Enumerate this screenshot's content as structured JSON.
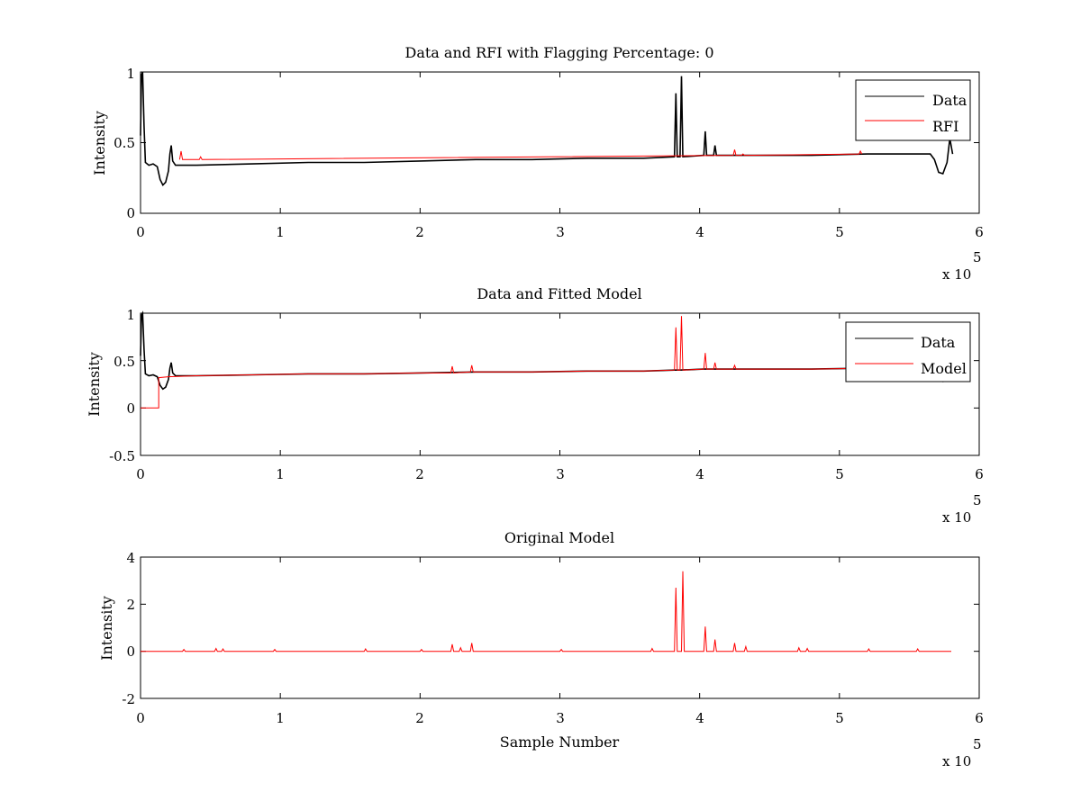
{
  "chart_data": [
    {
      "type": "line",
      "title": "Data and RFI with Flagging Percentage: 0",
      "xlabel": "",
      "ylabel": "Intensity",
      "xlim": [
        0,
        600000
      ],
      "ylim": [
        0,
        1
      ],
      "x_ticks": [
        "0",
        "1",
        "2",
        "3",
        "4",
        "5",
        "6"
      ],
      "y_ticks": [
        "0",
        "0.5",
        "1"
      ],
      "x_multiplier": "x 10",
      "x_multiplier_exp": "5",
      "legend_position": "top-right",
      "grid": false,
      "series": [
        {
          "name": "Data",
          "color": "#000000",
          "points": [
            [
              0,
              0.55
            ],
            [
              700,
              0.98
            ],
            [
              1500,
              1.0
            ],
            [
              2500,
              0.62
            ],
            [
              3500,
              0.36
            ],
            [
              6000,
              0.34
            ],
            [
              9000,
              0.35
            ],
            [
              12000,
              0.33
            ],
            [
              14000,
              0.24
            ],
            [
              16000,
              0.2
            ],
            [
              18000,
              0.22
            ],
            [
              20000,
              0.3
            ],
            [
              21000,
              0.42
            ],
            [
              22000,
              0.48
            ],
            [
              23000,
              0.37
            ],
            [
              25000,
              0.34
            ],
            [
              40000,
              0.34
            ],
            [
              80000,
              0.35
            ],
            [
              120000,
              0.36
            ],
            [
              160000,
              0.36
            ],
            [
              200000,
              0.37
            ],
            [
              240000,
              0.38
            ],
            [
              280000,
              0.38
            ],
            [
              320000,
              0.39
            ],
            [
              360000,
              0.39
            ],
            [
              382000,
              0.4
            ],
            [
              383000,
              0.85
            ],
            [
              384000,
              0.4
            ],
            [
              386000,
              0.4
            ],
            [
              387000,
              0.97
            ],
            [
              388000,
              0.4
            ],
            [
              403000,
              0.41
            ],
            [
              404000,
              0.58
            ],
            [
              405000,
              0.41
            ],
            [
              410000,
              0.41
            ],
            [
              411000,
              0.48
            ],
            [
              412000,
              0.41
            ],
            [
              440000,
              0.41
            ],
            [
              480000,
              0.41
            ],
            [
              520000,
              0.42
            ],
            [
              560000,
              0.42
            ],
            [
              565000,
              0.42
            ],
            [
              568000,
              0.38
            ],
            [
              571000,
              0.29
            ],
            [
              574000,
              0.28
            ],
            [
              577000,
              0.36
            ],
            [
              579000,
              0.53
            ],
            [
              581000,
              0.42
            ]
          ]
        },
        {
          "name": "RFI",
          "color": "#ff0000",
          "points": [
            [
              28000,
              0.38
            ],
            [
              29000,
              0.44
            ],
            [
              30000,
              0.38
            ],
            [
              42000,
              0.38
            ],
            [
              43000,
              0.4
            ],
            [
              44000,
              0.38
            ],
            [
              424000,
              0.41
            ],
            [
              425000,
              0.45
            ],
            [
              426000,
              0.41
            ],
            [
              430000,
              0.41
            ],
            [
              431000,
              0.42
            ],
            [
              432000,
              0.41
            ],
            [
              514000,
              0.42
            ],
            [
              515000,
              0.44
            ],
            [
              516000,
              0.42
            ]
          ]
        }
      ]
    },
    {
      "type": "line",
      "title": "Data and Fitted Model",
      "xlabel": "",
      "ylabel": "Intensity",
      "xlim": [
        0,
        600000
      ],
      "ylim": [
        -0.5,
        1
      ],
      "x_ticks": [
        "0",
        "1",
        "2",
        "3",
        "4",
        "5",
        "6"
      ],
      "y_ticks": [
        "-0.5",
        "0",
        "0.5",
        "1"
      ],
      "x_multiplier": "x 10",
      "x_multiplier_exp": "5",
      "legend_position": "top-right",
      "grid": false,
      "series": [
        {
          "name": "Data",
          "color": "#000000",
          "points": [
            [
              0,
              0.55
            ],
            [
              700,
              0.98
            ],
            [
              1500,
              1.0
            ],
            [
              2500,
              0.62
            ],
            [
              3500,
              0.36
            ],
            [
              6000,
              0.34
            ],
            [
              9000,
              0.35
            ],
            [
              12000,
              0.33
            ],
            [
              14000,
              0.24
            ],
            [
              16000,
              0.2
            ],
            [
              18000,
              0.22
            ],
            [
              20000,
              0.3
            ],
            [
              21000,
              0.42
            ],
            [
              22000,
              0.48
            ],
            [
              23000,
              0.37
            ],
            [
              25000,
              0.34
            ],
            [
              40000,
              0.34
            ],
            [
              80000,
              0.35
            ],
            [
              120000,
              0.36
            ],
            [
              160000,
              0.36
            ],
            [
              200000,
              0.37
            ],
            [
              240000,
              0.38
            ],
            [
              280000,
              0.38
            ],
            [
              320000,
              0.39
            ],
            [
              360000,
              0.39
            ],
            [
              382000,
              0.4
            ],
            [
              386000,
              0.4
            ],
            [
              403000,
              0.41
            ],
            [
              440000,
              0.41
            ],
            [
              480000,
              0.41
            ],
            [
              520000,
              0.42
            ],
            [
              560000,
              0.42
            ],
            [
              565000,
              0.42
            ],
            [
              568000,
              0.38
            ],
            [
              571000,
              0.29
            ],
            [
              574000,
              0.28
            ],
            [
              577000,
              0.36
            ],
            [
              579000,
              0.53
            ],
            [
              581000,
              0.42
            ]
          ]
        },
        {
          "name": "Model",
          "color": "#ff0000",
          "points": [
            [
              0,
              0
            ],
            [
              13000,
              0
            ],
            [
              13000,
              0.32
            ],
            [
              20000,
              0.33
            ],
            [
              40000,
              0.34
            ],
            [
              80000,
              0.35
            ],
            [
              120000,
              0.36
            ],
            [
              160000,
              0.36
            ],
            [
              200000,
              0.37
            ],
            [
              222000,
              0.37
            ],
            [
              223000,
              0.44
            ],
            [
              224000,
              0.37
            ],
            [
              236000,
              0.38
            ],
            [
              237000,
              0.45
            ],
            [
              238000,
              0.38
            ],
            [
              280000,
              0.38
            ],
            [
              320000,
              0.39
            ],
            [
              360000,
              0.39
            ],
            [
              382000,
              0.4
            ],
            [
              383000,
              0.85
            ],
            [
              384000,
              0.4
            ],
            [
              386000,
              0.4
            ],
            [
              387000,
              0.97
            ],
            [
              388000,
              0.4
            ],
            [
              403000,
              0.41
            ],
            [
              404000,
              0.58
            ],
            [
              405000,
              0.41
            ],
            [
              410000,
              0.41
            ],
            [
              411000,
              0.48
            ],
            [
              412000,
              0.41
            ],
            [
              424000,
              0.41
            ],
            [
              425000,
              0.45
            ],
            [
              426000,
              0.41
            ],
            [
              440000,
              0.41
            ],
            [
              480000,
              0.41
            ],
            [
              520000,
              0.42
            ],
            [
              580000,
              0.42
            ]
          ]
        }
      ]
    },
    {
      "type": "line",
      "title": "Original Model",
      "xlabel": "Sample Number",
      "ylabel": "Intensity",
      "xlim": [
        0,
        600000
      ],
      "ylim": [
        -2,
        4
      ],
      "x_ticks": [
        "0",
        "1",
        "2",
        "3",
        "4",
        "5",
        "6"
      ],
      "y_ticks": [
        "-2",
        "0",
        "2",
        "4"
      ],
      "x_multiplier": "x 10",
      "x_multiplier_exp": "5",
      "legend_position": "none",
      "grid": false,
      "series": [
        {
          "color": "#ff0000",
          "points": [
            [
              0,
              0
            ],
            [
              30000,
              0
            ],
            [
              31000,
              0.08
            ],
            [
              32000,
              0
            ],
            [
              53000,
              0
            ],
            [
              54000,
              0.12
            ],
            [
              55000,
              0
            ],
            [
              58000,
              0
            ],
            [
              59000,
              0.1
            ],
            [
              60000,
              0
            ],
            [
              95000,
              0
            ],
            [
              96000,
              0.08
            ],
            [
              97000,
              0
            ],
            [
              160000,
              0
            ],
            [
              161000,
              0.1
            ],
            [
              162000,
              0
            ],
            [
              200000,
              0
            ],
            [
              201000,
              0.08
            ],
            [
              202000,
              0
            ],
            [
              222000,
              0
            ],
            [
              223000,
              0.3
            ],
            [
              224000,
              0
            ],
            [
              228000,
              0
            ],
            [
              229000,
              0.15
            ],
            [
              230000,
              0
            ],
            [
              236000,
              0
            ],
            [
              237000,
              0.35
            ],
            [
              238000,
              0
            ],
            [
              300000,
              0
            ],
            [
              301000,
              0.08
            ],
            [
              302000,
              0
            ],
            [
              365000,
              0
            ],
            [
              366000,
              0.12
            ],
            [
              367000,
              0
            ],
            [
              382000,
              0
            ],
            [
              383000,
              2.7
            ],
            [
              384000,
              0
            ],
            [
              387000,
              0
            ],
            [
              388000,
              3.4
            ],
            [
              389000,
              0
            ],
            [
              403000,
              0
            ],
            [
              404000,
              1.05
            ],
            [
              405000,
              0
            ],
            [
              410000,
              0
            ],
            [
              411000,
              0.5
            ],
            [
              412000,
              0
            ],
            [
              424000,
              0
            ],
            [
              425000,
              0.35
            ],
            [
              426000,
              0
            ],
            [
              432000,
              0
            ],
            [
              433000,
              0.2
            ],
            [
              434000,
              0
            ],
            [
              470000,
              0
            ],
            [
              471000,
              0.15
            ],
            [
              472000,
              0
            ],
            [
              476000,
              0
            ],
            [
              477000,
              0.12
            ],
            [
              478000,
              0
            ],
            [
              520000,
              0
            ],
            [
              521000,
              0.1
            ],
            [
              522000,
              0
            ],
            [
              555000,
              0
            ],
            [
              556000,
              0.1
            ],
            [
              557000,
              0
            ],
            [
              580000,
              0
            ]
          ]
        }
      ]
    }
  ]
}
